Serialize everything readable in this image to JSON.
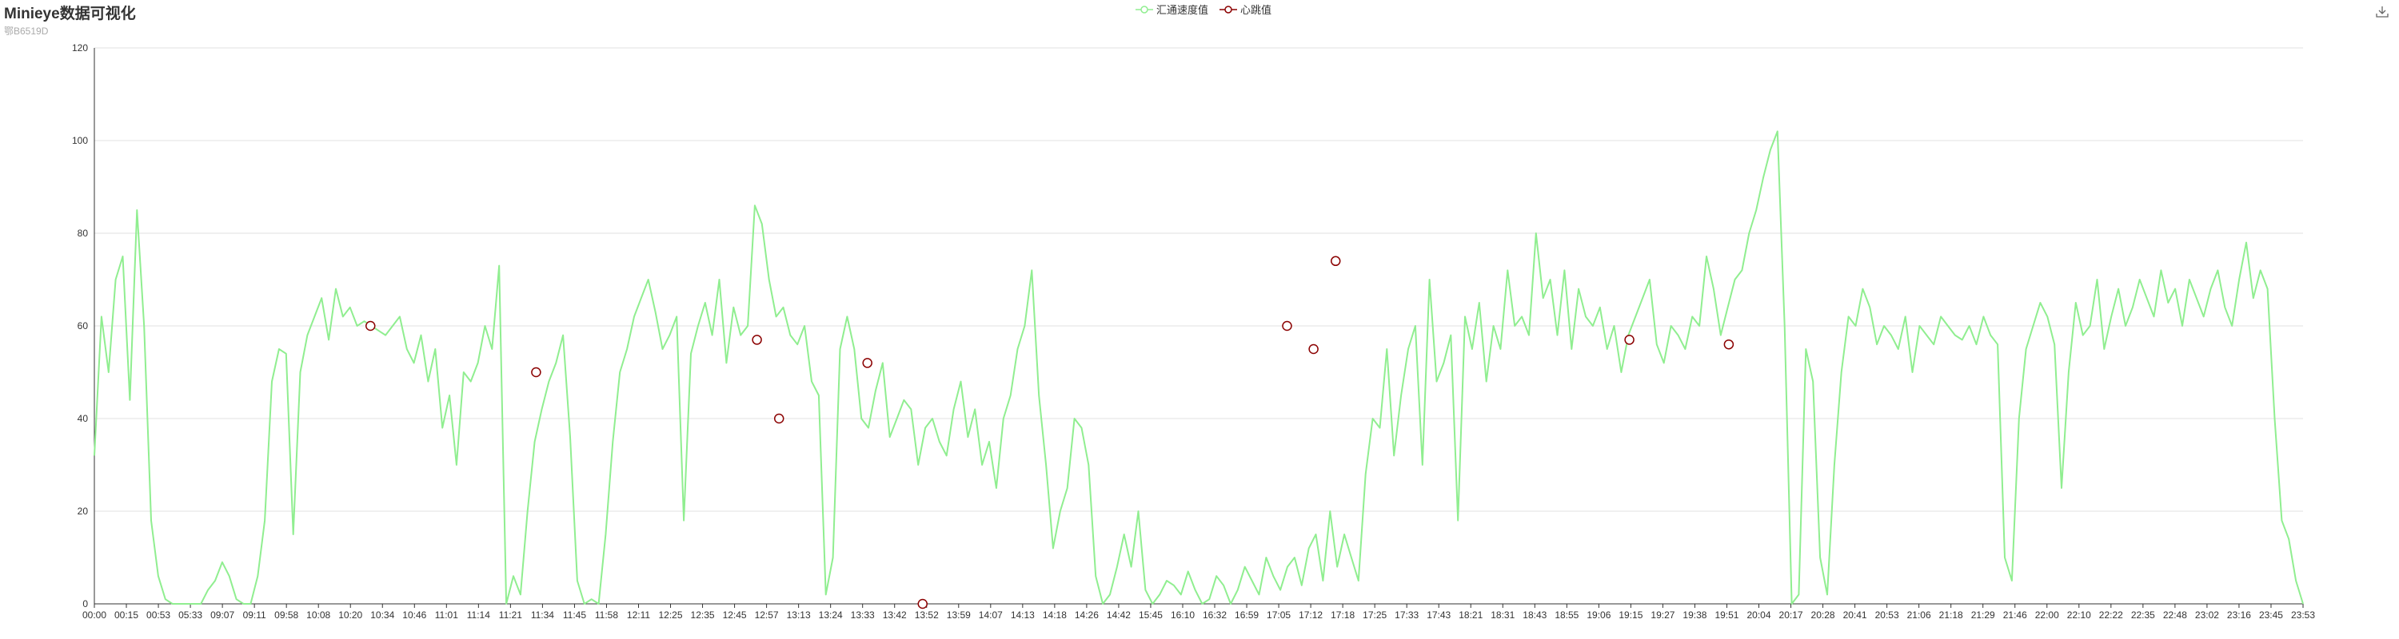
{
  "header": {
    "title": "Minieye数据可视化",
    "subtitle": "鄂B6519D"
  },
  "toolbox": {
    "icon": "download-icon"
  },
  "colors": {
    "series1": "#90ee90",
    "series2": "#8b0000",
    "grid": "#e0e0e0",
    "axis": "#333333"
  },
  "chart_data": {
    "type": "line",
    "title": "Minieye数据可视化",
    "subtitle": "鄂B6519D",
    "legend": {
      "position": "top-center",
      "items": [
        "汇通速度值",
        "心跳值"
      ]
    },
    "ylim": [
      0,
      120
    ],
    "yticks": [
      0,
      20,
      40,
      60,
      80,
      100,
      120
    ],
    "grid": true,
    "x_labels": [
      "00:00",
      "00:15",
      "00:53",
      "05:33",
      "09:07",
      "09:11",
      "09:58",
      "10:08",
      "10:20",
      "10:34",
      "10:46",
      "11:01",
      "11:14",
      "11:21",
      "11:34",
      "11:45",
      "11:58",
      "12:11",
      "12:25",
      "12:35",
      "12:45",
      "12:57",
      "13:13",
      "13:24",
      "13:33",
      "13:42",
      "13:52",
      "13:59",
      "14:07",
      "14:13",
      "14:18",
      "14:26",
      "14:42",
      "15:45",
      "16:10",
      "16:32",
      "16:59",
      "17:05",
      "17:12",
      "17:18",
      "17:25",
      "17:33",
      "17:43",
      "18:21",
      "18:31",
      "18:43",
      "18:55",
      "19:06",
      "19:15",
      "19:27",
      "19:38",
      "19:51",
      "20:04",
      "20:17",
      "20:28",
      "20:41",
      "20:53",
      "21:06",
      "21:18",
      "21:29",
      "21:46",
      "22:00",
      "22:10",
      "22:22",
      "22:35",
      "22:48",
      "23:02",
      "23:16",
      "23:45",
      "23:53"
    ],
    "series": [
      {
        "name": "汇通速度值",
        "type": "line",
        "color": "#90ee90",
        "values": [
          32,
          62,
          50,
          70,
          75,
          44,
          85,
          60,
          18,
          6,
          1,
          0,
          0,
          0,
          0,
          0,
          3,
          5,
          9,
          6,
          1,
          0,
          0,
          6,
          18,
          48,
          55,
          54,
          15,
          50,
          58,
          62,
          66,
          57,
          68,
          62,
          64,
          60,
          61,
          60,
          59,
          58,
          60,
          62,
          55,
          52,
          58,
          48,
          55,
          38,
          45,
          30,
          50,
          48,
          52,
          60,
          55,
          73,
          0,
          6,
          2,
          20,
          35,
          42,
          48,
          52,
          58,
          36,
          5,
          0,
          1,
          0,
          15,
          35,
          50,
          55,
          62,
          66,
          70,
          63,
          55,
          58,
          62,
          18,
          54,
          60,
          65,
          58,
          70,
          52,
          64,
          58,
          60,
          86,
          82,
          70,
          62,
          64,
          58,
          56,
          60,
          48,
          45,
          2,
          10,
          55,
          62,
          55,
          40,
          38,
          46,
          52,
          36,
          40,
          44,
          42,
          30,
          38,
          40,
          35,
          32,
          42,
          48,
          36,
          42,
          30,
          35,
          25,
          40,
          45,
          55,
          60,
          72,
          45,
          30,
          12,
          20,
          25,
          40,
          38,
          30,
          6,
          0,
          2,
          8,
          15,
          8,
          20,
          3,
          0,
          2,
          5,
          4,
          2,
          7,
          3,
          0,
          1,
          6,
          4,
          0,
          3,
          8,
          5,
          2,
          10,
          6,
          3,
          8,
          10,
          4,
          12,
          15,
          5,
          20,
          8,
          15,
          10,
          5,
          28,
          40,
          38,
          55,
          32,
          45,
          55,
          60,
          30,
          70,
          48,
          52,
          58,
          18,
          62,
          55,
          65,
          48,
          60,
          55,
          72,
          60,
          62,
          58,
          80,
          66,
          70,
          58,
          72,
          55,
          68,
          62,
          60,
          64,
          55,
          60,
          50,
          58,
          62,
          66,
          70,
          56,
          52,
          60,
          58,
          55,
          62,
          60,
          75,
          68,
          58,
          64,
          70,
          72,
          80,
          85,
          92,
          98,
          102,
          60,
          0,
          2,
          55,
          48,
          10,
          2,
          30,
          50,
          62,
          60,
          68,
          64,
          56,
          60,
          58,
          55,
          62,
          50,
          60,
          58,
          56,
          62,
          60,
          58,
          57,
          60,
          56,
          62,
          58,
          56,
          10,
          5,
          40,
          55,
          60,
          65,
          62,
          56,
          25,
          50,
          65,
          58,
          60,
          70,
          55,
          62,
          68,
          60,
          64,
          70,
          66,
          62,
          72,
          65,
          68,
          60,
          70,
          66,
          62,
          68,
          72,
          64,
          60,
          70,
          78,
          66,
          72,
          68,
          40,
          18,
          14,
          5,
          0
        ]
      },
      {
        "name": "心跳值",
        "type": "scatter",
        "color": "#8b0000",
        "points": [
          {
            "x": 0.125,
            "y": 60
          },
          {
            "x": 0.2,
            "y": 50
          },
          {
            "x": 0.3,
            "y": 57
          },
          {
            "x": 0.31,
            "y": 40
          },
          {
            "x": 0.35,
            "y": 52
          },
          {
            "x": 0.375,
            "y": 0
          },
          {
            "x": 0.54,
            "y": 60
          },
          {
            "x": 0.552,
            "y": 55
          },
          {
            "x": 0.562,
            "y": 74
          },
          {
            "x": 0.695,
            "y": 57
          },
          {
            "x": 0.74,
            "y": 56
          }
        ]
      }
    ]
  }
}
